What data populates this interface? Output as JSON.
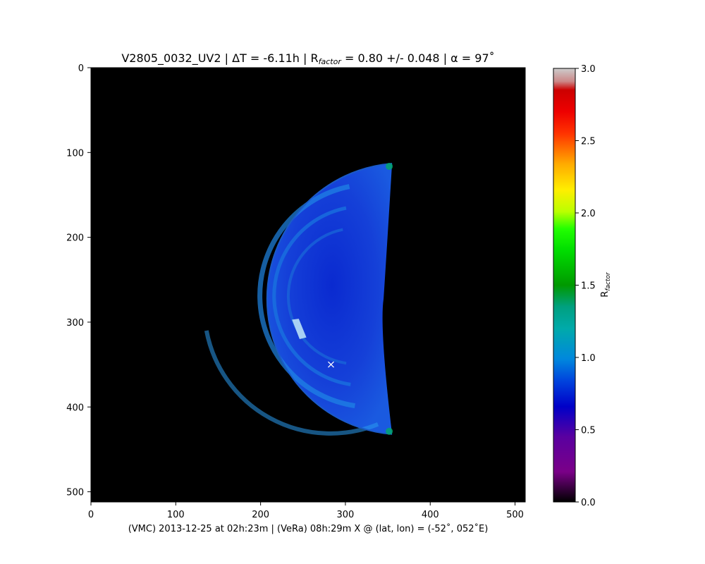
{
  "figure": {
    "title_main": "V2805_0032_UV2 | ΔT = -6.11h | R",
    "title_sub": "factor",
    "title_rest": " =  0.80 +/-  0.048 | α = 97˚",
    "bottom_caption": "(VMC)  2013-12-25 at 02h:23m   |   (VeRa)  08h:29m  X @ (lat, lon) = (-52˚, 052˚E)",
    "cbar_label_main": "R",
    "cbar_label_sub": "factor"
  },
  "chart_data": {
    "type": "heatmap",
    "description_terminator": "crescent of Venus dayside, image pixel coordinates",
    "x_ticks": [
      0,
      100,
      200,
      300,
      400,
      500
    ],
    "y_ticks": [
      0,
      100,
      200,
      300,
      400,
      500
    ],
    "xlim": [
      0,
      512
    ],
    "ylim": [
      512,
      0
    ],
    "colorbar": {
      "range": [
        0.0,
        3.0
      ],
      "ticks": [
        "0.0",
        "0.5",
        "1.0",
        "1.5",
        "2.0",
        "2.5",
        "3.0"
      ],
      "colormap": "nipy_spectral",
      "colors": [
        "#000000",
        "#7a0088",
        "#0000c8",
        "#0088dd",
        "#00aa88",
        "#00bb00",
        "#00ff00",
        "#ffff00",
        "#ffaa00",
        "#ff0000",
        "#cc0000",
        "#cccccc"
      ]
    },
    "disk": {
      "center": [
        285,
        270
      ],
      "radius": 160,
      "terminator_x": 345,
      "limb_top": [
        355,
        113
      ],
      "limb_bottom": [
        355,
        432
      ]
    },
    "marker": {
      "symbol": "x",
      "x": 283,
      "y": 350,
      "color": "#ffffff"
    },
    "mean_value": 0.8,
    "uncertainty": 0.048,
    "background": "#000000"
  }
}
